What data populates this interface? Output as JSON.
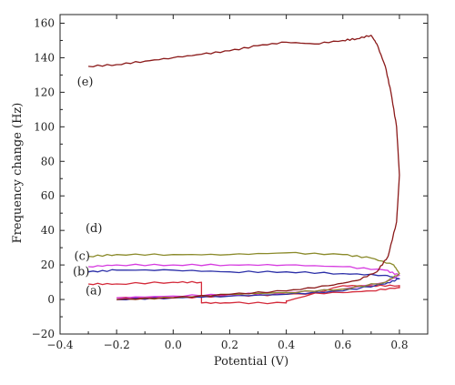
{
  "chart_data": {
    "type": "line",
    "xlabel": "Potential (V)",
    "ylabel": "Frequency change (Hz)",
    "xlim": [
      -0.4,
      0.9
    ],
    "ylim": [
      -20,
      165
    ],
    "xticks": [
      -0.4,
      -0.2,
      0.0,
      0.2,
      0.4,
      0.6,
      0.8
    ],
    "yticks": [
      -20,
      0,
      20,
      40,
      60,
      80,
      100,
      120,
      140,
      160
    ],
    "xtick_labels": [
      "−0.4",
      "−0.2",
      "0.0",
      "0.2",
      "0.4",
      "0.6",
      "0.8"
    ],
    "ytick_labels": [
      "−20",
      "0",
      "20",
      "40",
      "60",
      "80",
      "100",
      "120",
      "140",
      "160"
    ],
    "grid": false,
    "series": [
      {
        "name": "(a)",
        "color": "#d42a3a",
        "label_at": [
          -0.31,
          3
        ],
        "x": [
          -0.2,
          0.0,
          0.2,
          0.4,
          0.6,
          0.7,
          0.8,
          0.8,
          0.7,
          0.6,
          0.4,
          0.4,
          0.2,
          0.1,
          0.1,
          0.0,
          -0.2,
          -0.3
        ],
        "y": [
          1,
          1,
          2,
          3,
          4,
          5,
          7,
          8,
          8,
          8,
          -1,
          -2,
          -2,
          -2,
          10,
          10,
          9,
          9
        ]
      },
      {
        "name": "(b)",
        "color": "#2b2fa8",
        "label_at": [
          -0.355,
          14
        ],
        "x": [
          -0.2,
          0.0,
          0.2,
          0.4,
          0.6,
          0.75,
          0.8,
          0.75,
          0.6,
          0.4,
          0.2,
          0.0,
          -0.2,
          -0.3
        ],
        "y": [
          0,
          1,
          2,
          3,
          5,
          9,
          12,
          14,
          15,
          16,
          16,
          17,
          17,
          16
        ]
      },
      {
        "name": "(c)",
        "color": "#d63be0",
        "label_at": [
          -0.35,
          23
        ],
        "x": [
          -0.2,
          0.0,
          0.2,
          0.4,
          0.6,
          0.75,
          0.8,
          0.75,
          0.6,
          0.4,
          0.2,
          0.0,
          -0.2,
          -0.3
        ],
        "y": [
          1,
          2,
          3,
          4,
          6,
          10,
          14,
          17,
          19,
          20,
          20,
          20,
          20,
          19
        ]
      },
      {
        "name": "(d)",
        "color": "#8a8a2a",
        "label_at": [
          -0.31,
          39
        ],
        "x": [
          -0.2,
          0.0,
          0.2,
          0.4,
          0.6,
          0.75,
          0.8,
          0.78,
          0.7,
          0.6,
          0.4,
          0.2,
          0.0,
          -0.2,
          -0.3
        ],
        "y": [
          0,
          1,
          3,
          4,
          6,
          10,
          15,
          20,
          24,
          26,
          27,
          26,
          26,
          26,
          25
        ]
      },
      {
        "name": "(e)",
        "color": "#8b1a1a",
        "label_at": [
          -0.34,
          124
        ],
        "x": [
          -0.2,
          0.0,
          0.2,
          0.4,
          0.55,
          0.65,
          0.72,
          0.76,
          0.79,
          0.8,
          0.79,
          0.77,
          0.75,
          0.72,
          0.7,
          0.65,
          0.6,
          0.5,
          0.4,
          0.3,
          0.2,
          0.1,
          0.0,
          -0.1,
          -0.2,
          -0.3
        ],
        "y": [
          0,
          1,
          3,
          5,
          8,
          11,
          16,
          25,
          45,
          72,
          100,
          120,
          135,
          148,
          153,
          151,
          150,
          148,
          149,
          147,
          144,
          142,
          140,
          138,
          136,
          135
        ]
      }
    ]
  }
}
